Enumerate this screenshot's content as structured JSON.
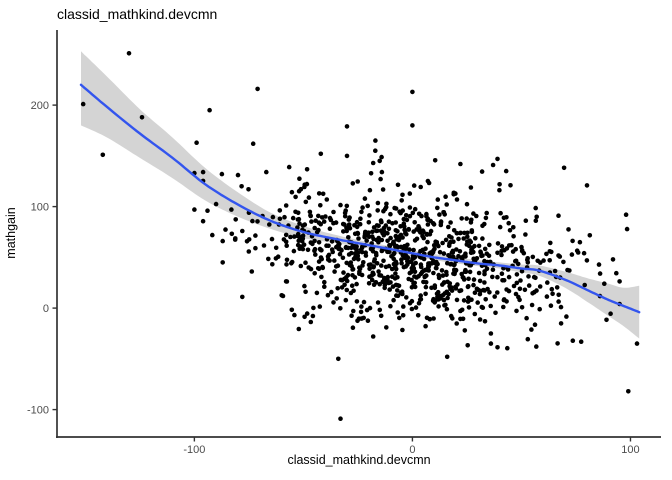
{
  "title": "classid_mathkind.devcmn",
  "colors": {
    "point": "#000000",
    "smooth_line": "#3355EE",
    "band_gray": "#999999",
    "band_alpha": 0.42,
    "axis_line": "#333333",
    "tick_label": "#4d4d4d",
    "background": "#ffffff"
  },
  "chart_data": {
    "type": "scatter",
    "title": "classid_mathkind.devcmn",
    "xlabel": "classid_mathkind.devcmn",
    "ylabel": "mathgain",
    "x_ticks": [
      -100,
      0,
      100
    ],
    "y_ticks": [
      -100,
      0,
      100,
      200
    ],
    "x_domain": [
      -163,
      114
    ],
    "y_domain": [
      -127,
      274
    ],
    "grid": false,
    "legend": "none",
    "smooth_curve": [
      [
        -152,
        220
      ],
      [
        -140,
        198
      ],
      [
        -125,
        172
      ],
      [
        -110,
        148
      ],
      [
        -95,
        122
      ],
      [
        -80,
        102
      ],
      [
        -65,
        86
      ],
      [
        -50,
        75
      ],
      [
        -35,
        68
      ],
      [
        -20,
        62
      ],
      [
        -10,
        58
      ],
      [
        0,
        54
      ],
      [
        10,
        50
      ],
      [
        20,
        47
      ],
      [
        30,
        44
      ],
      [
        40,
        42
      ],
      [
        50,
        39
      ],
      [
        58,
        37
      ],
      [
        70,
        28
      ],
      [
        81,
        17
      ],
      [
        90,
        8
      ],
      [
        97,
        2
      ],
      [
        104,
        -4
      ]
    ],
    "confidence_band": [
      [
        -152,
        253,
        180
      ],
      [
        -140,
        228,
        168
      ],
      [
        -125,
        196,
        148
      ],
      [
        -110,
        168,
        128
      ],
      [
        -95,
        138,
        106
      ],
      [
        -80,
        114,
        90
      ],
      [
        -65,
        94,
        78
      ],
      [
        -50,
        81,
        69
      ],
      [
        -35,
        72,
        64
      ],
      [
        -20,
        65,
        59
      ],
      [
        0,
        57,
        51
      ],
      [
        20,
        50,
        44
      ],
      [
        40,
        45,
        39
      ],
      [
        50,
        43,
        35
      ],
      [
        58,
        42,
        32
      ],
      [
        70,
        36,
        20
      ],
      [
        81,
        29,
        5
      ],
      [
        90,
        24,
        -8
      ],
      [
        97,
        20,
        -18
      ],
      [
        104,
        22,
        -30
      ]
    ],
    "points": [
      [
        -151,
        201
      ],
      [
        -130,
        251
      ],
      [
        -124,
        188
      ],
      [
        -142,
        151
      ],
      [
        -93,
        195
      ],
      [
        -71,
        216
      ],
      [
        -99,
        163
      ],
      [
        -73,
        162
      ],
      [
        -100,
        133
      ],
      [
        -80,
        131
      ],
      [
        -67,
        134
      ],
      [
        -30,
        179
      ],
      [
        -42,
        152
      ],
      [
        -30,
        150
      ],
      [
        0,
        213
      ],
      [
        0,
        180
      ],
      [
        -17,
        165
      ],
      [
        -15,
        145
      ],
      [
        -18,
        143
      ],
      [
        -14,
        134
      ],
      [
        22,
        142
      ],
      [
        37,
        141
      ],
      [
        39,
        147
      ],
      [
        43,
        135
      ],
      [
        45,
        121
      ],
      [
        40,
        122
      ],
      [
        -100,
        97
      ],
      [
        -94,
        96
      ],
      [
        -83,
        97
      ],
      [
        -87,
        66
      ],
      [
        -87,
        45
      ],
      [
        -78,
        76
      ],
      [
        -78,
        11
      ],
      [
        -72,
        59
      ],
      [
        98,
        92
      ],
      [
        67,
        91
      ],
      [
        57,
        90
      ],
      [
        92,
        48
      ],
      [
        80,
        47
      ],
      [
        72,
        37
      ],
      [
        63,
        56
      ],
      [
        88,
        24
      ],
      [
        95,
        4
      ],
      [
        -34,
        -50
      ],
      [
        -33,
        -109
      ],
      [
        -18,
        -28
      ],
      [
        -12,
        -19
      ],
      [
        24,
        -22
      ],
      [
        36,
        -25
      ],
      [
        36,
        -35
      ],
      [
        103,
        -35
      ],
      [
        99,
        -82
      ]
    ],
    "cloud": {
      "count": 960,
      "seed": 11,
      "x_mean": -3,
      "x_sd": 35,
      "x_clip": [
        -96,
        102
      ],
      "trend_intercept": 52,
      "trend_slope": -0.3,
      "noise_sd": 31,
      "y_clip": [
        -48,
        168
      ]
    }
  }
}
